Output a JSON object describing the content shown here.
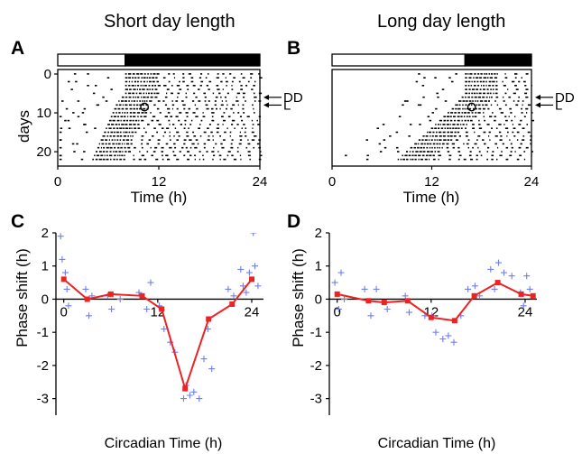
{
  "figure": {
    "titles": [
      "Short day length",
      "Long day length"
    ]
  },
  "chart_data": [
    {
      "panel": "A",
      "type": "actogram",
      "title": "Short day length",
      "xlabel": "Time (h)",
      "ylabel": "days",
      "xlim": [
        0,
        24
      ],
      "ylim": [
        23,
        0
      ],
      "x_ticks": [
        "0",
        "12",
        "24"
      ],
      "y_ticks": [
        "0",
        "10",
        "20"
      ],
      "light_dark_bar": {
        "light": [
          0,
          8
        ],
        "dark": [
          8,
          24
        ]
      },
      "arrows": [
        {
          "label": "DD",
          "day": 6
        },
        {
          "label": "L",
          "day": 8
        }
      ],
      "pulse_marker": {
        "time": 10.3,
        "day": 8.5
      },
      "onsets": [
        {
          "day": 0,
          "onset": 8
        },
        {
          "day": 1,
          "onset": 8
        },
        {
          "day": 2,
          "onset": 8
        },
        {
          "day": 3,
          "onset": 8
        },
        {
          "day": 4,
          "onset": 8
        },
        {
          "day": 5,
          "onset": 8
        },
        {
          "day": 6,
          "onset": 7.6
        },
        {
          "day": 7,
          "onset": 7.2
        },
        {
          "day": 8,
          "onset": 6.9
        },
        {
          "day": 9,
          "onset": 6.7
        },
        {
          "day": 10,
          "onset": 6.5
        },
        {
          "day": 11,
          "onset": 6.3
        },
        {
          "day": 12,
          "onset": 6.1
        },
        {
          "day": 13,
          "onset": 5.9
        },
        {
          "day": 14,
          "onset": 5.7
        },
        {
          "day": 15,
          "onset": 5.5
        },
        {
          "day": 16,
          "onset": 5.3
        },
        {
          "day": 17,
          "onset": 5.1
        },
        {
          "day": 18,
          "onset": 4.9
        },
        {
          "day": 19,
          "onset": 4.7
        },
        {
          "day": 20,
          "onset": 4.5
        },
        {
          "day": 21,
          "onset": 4.3
        },
        {
          "day": 22,
          "onset": 4.1
        }
      ]
    },
    {
      "panel": "B",
      "type": "actogram",
      "title": "Long day length",
      "xlabel": "Time (h)",
      "ylabel": "",
      "xlim": [
        0,
        24
      ],
      "ylim": [
        23,
        0
      ],
      "x_ticks": [
        "0",
        "12",
        "24"
      ],
      "y_ticks": [],
      "light_dark_bar": {
        "light": [
          0,
          16
        ],
        "dark": [
          16,
          24
        ]
      },
      "arrows": [
        {
          "label": "DD",
          "day": 6
        },
        {
          "label": "L",
          "day": 8
        }
      ],
      "pulse_marker": {
        "time": 16.8,
        "day": 8.5
      },
      "onsets": [
        {
          "day": 0,
          "onset": 16
        },
        {
          "day": 1,
          "onset": 16
        },
        {
          "day": 2,
          "onset": 16
        },
        {
          "day": 3,
          "onset": 16
        },
        {
          "day": 4,
          "onset": 16
        },
        {
          "day": 5,
          "onset": 16
        },
        {
          "day": 6,
          "onset": 15.6
        },
        {
          "day": 7,
          "onset": 15.2
        },
        {
          "day": 8,
          "onset": 14.8
        },
        {
          "day": 9,
          "onset": 14.4
        },
        {
          "day": 10,
          "onset": 13.9
        },
        {
          "day": 11,
          "onset": 13.4
        },
        {
          "day": 12,
          "onset": 12.9
        },
        {
          "day": 13,
          "onset": 12.4
        },
        {
          "day": 14,
          "onset": 11.9
        },
        {
          "day": 15,
          "onset": 11.4
        },
        {
          "day": 16,
          "onset": 10.9
        },
        {
          "day": 17,
          "onset": 10.4
        },
        {
          "day": 18,
          "onset": 9.9
        },
        {
          "day": 19,
          "onset": 9.4
        },
        {
          "day": 20,
          "onset": 8.9
        },
        {
          "day": 21,
          "onset": 8.4
        },
        {
          "day": 22,
          "onset": 7.9
        }
      ]
    },
    {
      "panel": "C",
      "type": "scatter+line",
      "xlabel": "Circadian Time (h)",
      "ylabel": "Phase shift (h)",
      "xlim": [
        -1,
        25.5
      ],
      "ylim": [
        -3.5,
        2
      ],
      "x_ticks": [
        "0",
        "12",
        "24"
      ],
      "y_ticks": [
        "-3",
        "-2",
        "-1",
        "0",
        "1",
        "2"
      ],
      "colors": {
        "line": "#ee2222",
        "scatter": "#6f7ff0"
      },
      "series": [
        {
          "role": "mean",
          "x": [
            0,
            3,
            6,
            10,
            12.5,
            15.5,
            18.5,
            21.5,
            24
          ],
          "y": [
            0.6,
            0.0,
            0.15,
            0.1,
            -0.3,
            -2.7,
            -0.6,
            -0.15,
            0.6
          ]
        },
        {
          "role": "individual",
          "x": [
            -0.4,
            -0.2,
            0.2,
            0.4,
            0.6,
            2.8,
            3.2,
            3.6,
            5.6,
            6.1,
            7.2,
            9.6,
            10.6,
            11.1,
            12.2,
            12.8,
            13.6,
            14.2,
            15.3,
            15.6,
            16.1,
            16.6,
            17.3,
            17.9,
            18.4,
            18.9,
            21.0,
            21.7,
            22.6,
            22.9,
            23.3,
            23.7,
            24.2,
            24.4,
            24.8
          ],
          "y": [
            1.9,
            1.2,
            0.8,
            0.3,
            -0.2,
            0.3,
            -0.5,
            0.1,
            0.1,
            -0.3,
            0.0,
            0.2,
            -0.3,
            0.5,
            -0.2,
            -0.9,
            -1.3,
            -1.6,
            -3.0,
            -2.6,
            -2.9,
            -2.8,
            -3.0,
            -1.8,
            -0.9,
            -2.1,
            0.3,
            0.1,
            0.9,
            0.4,
            0.2,
            0.8,
            2.0,
            1.0,
            0.4
          ]
        }
      ]
    },
    {
      "panel": "D",
      "type": "scatter+line",
      "xlabel": "Circadian Time (h)",
      "ylabel": "Phase shift (h)",
      "xlim": [
        -1,
        25.5
      ],
      "ylim": [
        -3.5,
        2
      ],
      "x_ticks": [
        "0",
        "12",
        "24"
      ],
      "y_ticks": [
        "-3",
        "-2",
        "-1",
        "0",
        "1",
        "2"
      ],
      "colors": {
        "line": "#ee2222",
        "scatter": "#6f7ff0"
      },
      "series": [
        {
          "role": "mean",
          "x": [
            0,
            4,
            6,
            9,
            12,
            15,
            17.5,
            20.5,
            23.5,
            25
          ],
          "y": [
            0.15,
            -0.05,
            -0.1,
            -0.05,
            -0.55,
            -0.65,
            0.1,
            0.5,
            0.15,
            0.1
          ]
        },
        {
          "role": "individual",
          "x": [
            -0.3,
            0.2,
            0.5,
            0.9,
            3.5,
            4.3,
            5.0,
            6.4,
            8.7,
            9.2,
            11.2,
            12.1,
            12.6,
            13.5,
            14.2,
            14.9,
            15.8,
            16.7,
            17.6,
            18.2,
            19.6,
            20.1,
            20.6,
            21.3,
            22.3,
            23.4,
            23.8,
            24.2,
            24.6
          ],
          "y": [
            0.5,
            -0.3,
            0.8,
            0.0,
            0.3,
            -0.5,
            0.3,
            -0.3,
            0.1,
            -0.4,
            -0.5,
            -0.5,
            -1.0,
            -1.2,
            -1.1,
            -1.3,
            -0.5,
            0.3,
            0.4,
            0.1,
            0.9,
            0.3,
            1.1,
            0.8,
            0.7,
            0.2,
            -0.2,
            0.7,
            0.3
          ]
        }
      ]
    }
  ]
}
